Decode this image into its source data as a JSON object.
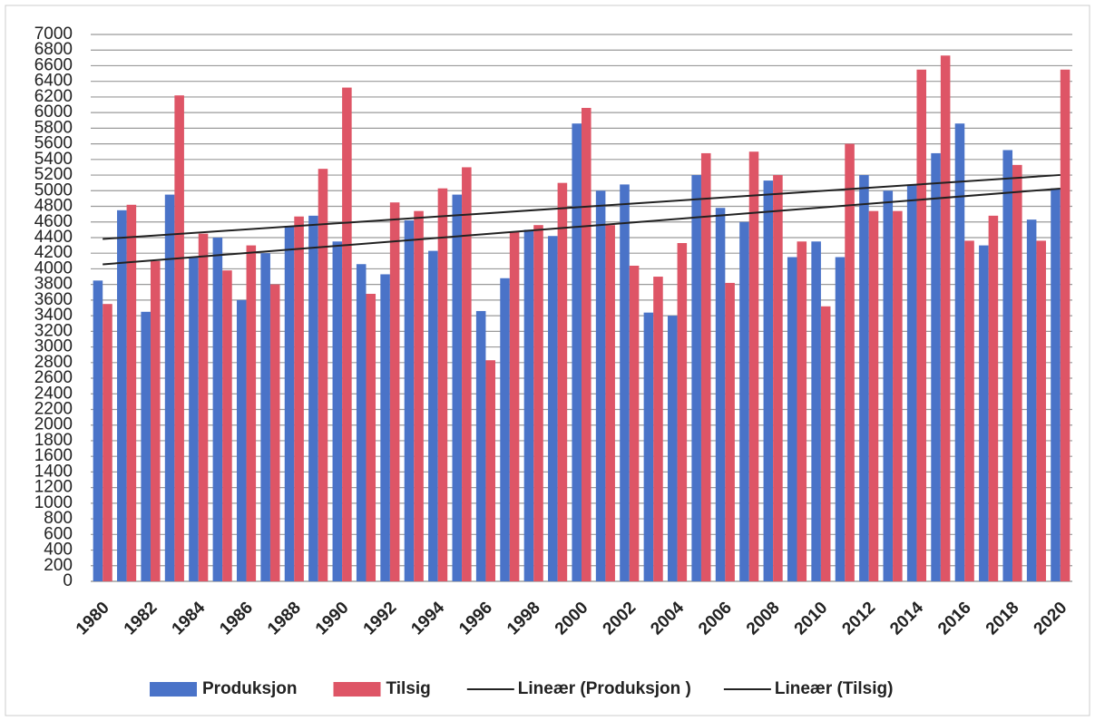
{
  "chart_data": {
    "type": "bar",
    "categories": [
      "1980",
      null,
      "1982",
      null,
      "1984",
      null,
      "1986",
      null,
      "1988",
      null,
      "1990",
      null,
      "1992",
      null,
      "1994",
      null,
      "1996",
      null,
      "1998",
      null,
      "2000",
      null,
      "2002",
      null,
      "2004",
      null,
      "2006",
      null,
      "2008",
      null,
      "2010",
      null,
      "2012",
      null,
      "2014",
      null,
      "2016",
      null,
      "2018",
      null,
      "2020"
    ],
    "series": [
      {
        "name": "Produksjon",
        "color": "#4a73c8",
        "trendline": {
          "name": "Lineær (Produksjon )",
          "color": "#222222"
        },
        "values": [
          3850,
          4750,
          3450,
          4950,
          4150,
          4400,
          3600,
          4200,
          4550,
          4680,
          4350,
          4060,
          3930,
          4620,
          4230,
          4950,
          3460,
          3880,
          4500,
          4420,
          5860,
          5000,
          5080,
          3440,
          3400,
          5200,
          4780,
          4600,
          5130,
          4150,
          4350,
          4150,
          5200,
          5000,
          5080,
          5480,
          5860,
          4300,
          5520,
          4630,
          5030
        ]
      },
      {
        "name": "Tilsig",
        "color": "#de5566",
        "trendline": {
          "name": "Lineær (Tilsig)",
          "color": "#222222"
        },
        "values": [
          3550,
          4820,
          4100,
          6220,
          4450,
          3980,
          4300,
          3800,
          4670,
          5280,
          6320,
          3680,
          4850,
          4740,
          5030,
          5300,
          2830,
          4480,
          4560,
          5100,
          6060,
          4560,
          4040,
          3900,
          4330,
          5480,
          3820,
          5500,
          5200,
          4350,
          3520,
          5600,
          4740,
          4740,
          6550,
          6730,
          4360,
          4680,
          5330,
          4360,
          6550
        ]
      }
    ],
    "ylim": [
      0,
      7000
    ],
    "yticks": [
      0,
      200,
      400,
      600,
      800,
      1000,
      1200,
      1400,
      1600,
      1800,
      2000,
      2200,
      2400,
      2600,
      2800,
      3000,
      3200,
      3400,
      3600,
      3800,
      4000,
      4200,
      4400,
      4600,
      4800,
      5000,
      5200,
      5400,
      5600,
      5800,
      6000,
      6200,
      6400,
      6600,
      6800,
      7000
    ],
    "grid": true,
    "legend": "bottom"
  }
}
